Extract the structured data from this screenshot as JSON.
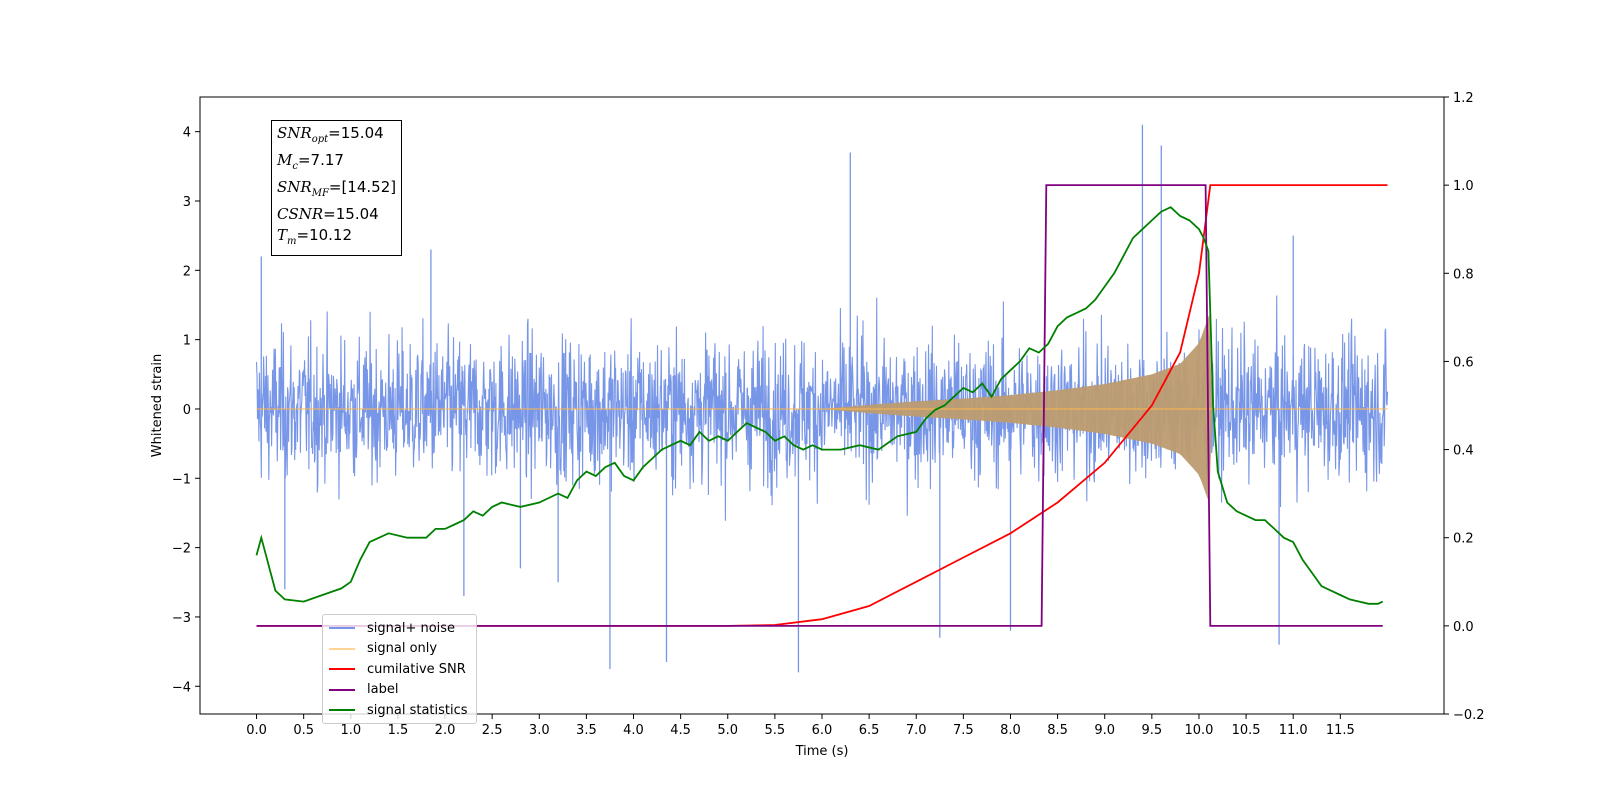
{
  "chart_data": {
    "type": "line",
    "title": "",
    "xlabel": "Time (s)",
    "ylabel_left": "Whitened strain",
    "ylabel_right": "",
    "xlim": [
      -0.6,
      12.6
    ],
    "ylim_left": [
      -4.4,
      4.5
    ],
    "ylim_right": [
      -0.2,
      1.2
    ],
    "x_ticks": [
      "0.0",
      "0.5",
      "1.0",
      "1.5",
      "2.0",
      "2.5",
      "3.0",
      "3.5",
      "4.0",
      "4.5",
      "5.0",
      "5.5",
      "6.0",
      "6.5",
      "7.0",
      "7.5",
      "8.0",
      "8.5",
      "9.0",
      "9.5",
      "10.0",
      "10.5",
      "11.0",
      "11.5"
    ],
    "y_ticks_left": [
      "4",
      "3",
      "2",
      "1",
      "0",
      "−1",
      "−2",
      "−3",
      "−4"
    ],
    "y_ticks_right": [
      "1.2",
      "1.0",
      "0.8",
      "0.6",
      "0.4",
      "0.2",
      "0.0",
      "−0.2"
    ],
    "grid": false,
    "legend_position": "lower-left",
    "series": [
      {
        "name": "signal+ noise",
        "color": "#7896e8",
        "axis": "left",
        "description": "noise band about +/-2.3 with spikes up to 4.1 and down to -3.8, from 0.0 to 12.0 s",
        "spikes": [
          [
            0.05,
            2.2
          ],
          [
            0.3,
            -2.6
          ],
          [
            1.85,
            2.3
          ],
          [
            2.2,
            -2.7
          ],
          [
            2.8,
            -2.3
          ],
          [
            3.2,
            -2.5
          ],
          [
            3.75,
            -3.75
          ],
          [
            4.35,
            -3.65
          ],
          [
            5.75,
            -3.8
          ],
          [
            6.3,
            3.7
          ],
          [
            7.25,
            -3.3
          ],
          [
            8.0,
            -3.2
          ],
          [
            9.4,
            4.1
          ],
          [
            9.6,
            3.8
          ],
          [
            10.85,
            -3.4
          ],
          [
            11.0,
            2.5
          ]
        ]
      },
      {
        "name": "signal only",
        "color": "#ffb84d",
        "axis": "left",
        "description": "chirp envelope growing from 0 near 6.0 s to 1.4 at 10.12 s then 0",
        "envelope": [
          [
            0.0,
            0.0
          ],
          [
            6.0,
            0.0
          ],
          [
            6.5,
            0.06
          ],
          [
            7.0,
            0.11
          ],
          [
            7.5,
            0.15
          ],
          [
            8.0,
            0.2
          ],
          [
            8.5,
            0.27
          ],
          [
            9.0,
            0.36
          ],
          [
            9.5,
            0.5
          ],
          [
            9.8,
            0.65
          ],
          [
            10.0,
            0.95
          ],
          [
            10.12,
            1.4
          ],
          [
            10.13,
            0.0
          ],
          [
            12.0,
            0.0
          ]
        ]
      },
      {
        "name": "cumilative SNR",
        "color": "#ff0000",
        "axis": "right",
        "x": [
          0.0,
          5.0,
          5.5,
          6.0,
          6.5,
          7.0,
          7.5,
          8.0,
          8.5,
          9.0,
          9.5,
          9.8,
          10.0,
          10.12,
          10.15,
          12.0
        ],
        "y": [
          0.0,
          0.0,
          0.002,
          0.015,
          0.045,
          0.1,
          0.155,
          0.21,
          0.28,
          0.37,
          0.5,
          0.62,
          0.8,
          1.0,
          1.0,
          1.0
        ]
      },
      {
        "name": "label",
        "color": "#800080",
        "axis": "right",
        "x": [
          0.0,
          8.33,
          8.38,
          10.07,
          10.12,
          11.95
        ],
        "y": [
          0.0,
          0.0,
          1.0,
          1.0,
          0.0,
          0.0
        ]
      },
      {
        "name": "signal statistics",
        "color": "#008000",
        "axis": "right",
        "x": [
          0.0,
          0.05,
          0.1,
          0.2,
          0.3,
          0.5,
          0.7,
          0.9,
          1.0,
          1.1,
          1.2,
          1.3,
          1.4,
          1.6,
          1.8,
          1.9,
          2.0,
          2.1,
          2.2,
          2.3,
          2.4,
          2.5,
          2.6,
          2.8,
          3.0,
          3.1,
          3.2,
          3.3,
          3.4,
          3.5,
          3.6,
          3.7,
          3.8,
          3.9,
          4.0,
          4.1,
          4.2,
          4.3,
          4.4,
          4.5,
          4.6,
          4.7,
          4.8,
          4.9,
          5.0,
          5.1,
          5.2,
          5.3,
          5.4,
          5.5,
          5.6,
          5.7,
          5.8,
          5.9,
          6.0,
          6.2,
          6.4,
          6.6,
          6.8,
          7.0,
          7.1,
          7.2,
          7.3,
          7.4,
          7.5,
          7.6,
          7.7,
          7.8,
          7.9,
          8.0,
          8.1,
          8.2,
          8.3,
          8.4,
          8.5,
          8.6,
          8.7,
          8.8,
          8.9,
          9.0,
          9.1,
          9.2,
          9.3,
          9.4,
          9.5,
          9.6,
          9.7,
          9.8,
          9.9,
          10.0,
          10.05,
          10.1,
          10.15,
          10.2,
          10.3,
          10.4,
          10.5,
          10.6,
          10.7,
          10.8,
          10.9,
          11.0,
          11.1,
          11.2,
          11.3,
          11.4,
          11.5,
          11.6,
          11.7,
          11.8,
          11.9,
          11.95
        ],
        "y": [
          0.16,
          0.2,
          0.16,
          0.08,
          0.06,
          0.055,
          0.07,
          0.085,
          0.1,
          0.15,
          0.19,
          0.2,
          0.21,
          0.2,
          0.2,
          0.22,
          0.22,
          0.23,
          0.24,
          0.26,
          0.25,
          0.27,
          0.28,
          0.27,
          0.28,
          0.29,
          0.3,
          0.29,
          0.33,
          0.35,
          0.34,
          0.36,
          0.37,
          0.34,
          0.33,
          0.36,
          0.38,
          0.4,
          0.41,
          0.42,
          0.41,
          0.44,
          0.42,
          0.43,
          0.42,
          0.44,
          0.46,
          0.45,
          0.44,
          0.42,
          0.43,
          0.41,
          0.4,
          0.41,
          0.4,
          0.4,
          0.41,
          0.4,
          0.43,
          0.44,
          0.47,
          0.49,
          0.5,
          0.52,
          0.54,
          0.53,
          0.55,
          0.52,
          0.56,
          0.58,
          0.6,
          0.63,
          0.62,
          0.64,
          0.68,
          0.7,
          0.71,
          0.72,
          0.74,
          0.77,
          0.8,
          0.84,
          0.88,
          0.9,
          0.92,
          0.94,
          0.95,
          0.93,
          0.92,
          0.9,
          0.88,
          0.85,
          0.5,
          0.35,
          0.28,
          0.26,
          0.25,
          0.24,
          0.24,
          0.22,
          0.2,
          0.19,
          0.15,
          0.12,
          0.09,
          0.08,
          0.07,
          0.06,
          0.055,
          0.05,
          0.05,
          0.055
        ]
      }
    ],
    "annotation": {
      "lines": [
        {
          "var": "SNR",
          "sub": "opt",
          "value": "=15.04"
        },
        {
          "var": "M",
          "sub": "c",
          "value": "=7.17"
        },
        {
          "var": "SNR",
          "sub": "MF",
          "value": "=[14.52]"
        },
        {
          "var": "CSNR",
          "sub": "",
          "value": "=15.04"
        },
        {
          "var": "T",
          "sub": "m",
          "value": "=10.12"
        }
      ]
    }
  }
}
